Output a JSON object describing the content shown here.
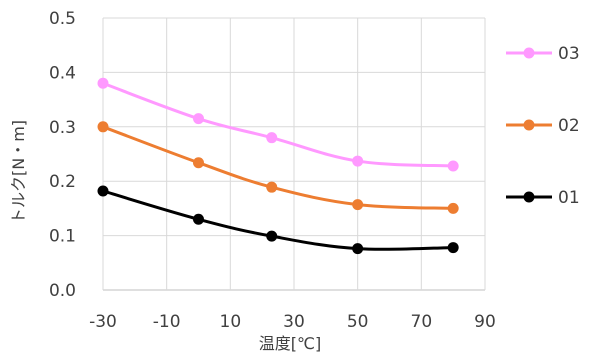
{
  "chart_data": {
    "type": "line",
    "xlabel": "温度[℃]",
    "ylabel": "トルク[N・m]",
    "xlim": [
      -30,
      90
    ],
    "ylim": [
      0,
      0.5
    ],
    "x_ticks": [
      "-30",
      "-10",
      "10",
      "30",
      "50",
      "70",
      "90"
    ],
    "y_ticks": [
      "0.0",
      "0.1",
      "0.2",
      "0.3",
      "0.4",
      "0.5"
    ],
    "grid": "vertical and horizontal",
    "legend_position": "right",
    "x": [
      -30,
      0,
      23,
      50,
      80
    ],
    "series": [
      {
        "name": "03",
        "color": "#ff99ff",
        "values": [
          0.38,
          0.315,
          0.28,
          0.237,
          0.228
        ]
      },
      {
        "name": "02",
        "color": "#ed7d31",
        "values": [
          0.3,
          0.234,
          0.189,
          0.157,
          0.15
        ]
      },
      {
        "name": "01",
        "color": "#000000",
        "values": [
          0.182,
          0.13,
          0.099,
          0.076,
          0.078
        ]
      }
    ]
  }
}
